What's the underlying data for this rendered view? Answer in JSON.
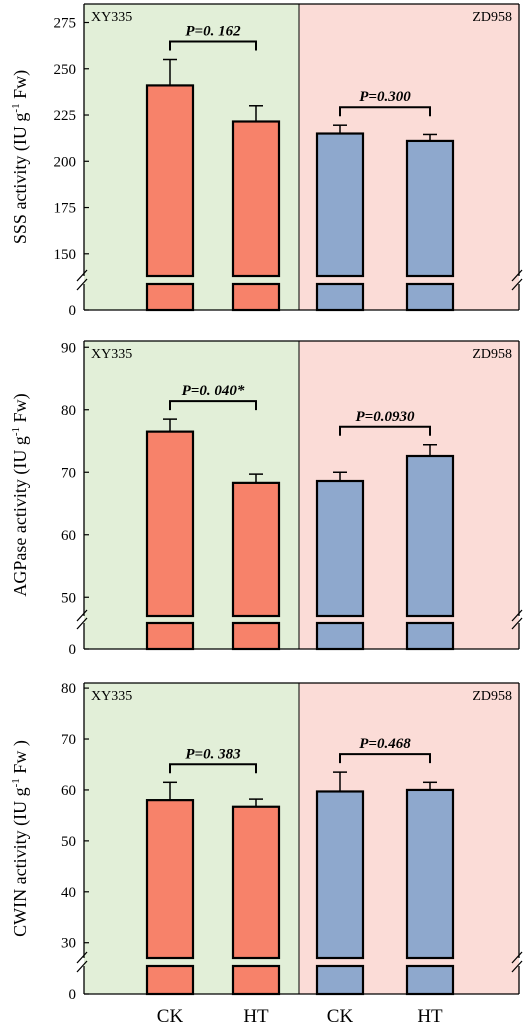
{
  "figure": {
    "x_categories": [
      "CK",
      "HT",
      "CK",
      "HT"
    ],
    "colors": {
      "left_bg": "#e2efd8",
      "right_bg": "#fbdcd7",
      "xy335_bar": "#f7826a",
      "zd958_bar": "#8ea8cd",
      "bar_stroke": "#000000"
    }
  },
  "chart_data": [
    {
      "type": "bar",
      "ylabel_main": "SSS activity (IU g",
      "ylabel_sup": "-1",
      "ylabel_tail": " Fw)",
      "yticks": [
        "275",
        "250",
        "225",
        "200",
        "175",
        "150"
      ],
      "y_bottom_tick": "0",
      "ylim": [
        138,
        285
      ],
      "axis_break": true,
      "groups": [
        {
          "name": "XY335",
          "categories": [
            "CK",
            "HT"
          ],
          "values": [
            241,
            221.5
          ],
          "errors": [
            14,
            8.5
          ],
          "pvalue": "P=0. 162"
        },
        {
          "name": "ZD958",
          "categories": [
            "CK",
            "HT"
          ],
          "values": [
            215,
            211
          ],
          "errors": [
            4.5,
            3.5
          ],
          "pvalue": "P=0.300"
        }
      ]
    },
    {
      "type": "bar",
      "ylabel_main": "AGPase activity (IU g",
      "ylabel_sup": "-1",
      "ylabel_tail": " Fw)",
      "yticks": [
        "90",
        "80",
        "70",
        "60",
        "50"
      ],
      "y_bottom_tick": "0",
      "ylim": [
        47,
        91
      ],
      "axis_break": true,
      "groups": [
        {
          "name": "XY335",
          "categories": [
            "CK",
            "HT"
          ],
          "values": [
            76.5,
            68.3
          ],
          "errors": [
            2,
            1.4
          ],
          "pvalue": "P=0. 040*"
        },
        {
          "name": "ZD958",
          "categories": [
            "CK",
            "HT"
          ],
          "values": [
            68.6,
            72.6
          ],
          "errors": [
            1.4,
            1.8
          ],
          "pvalue": "P=0.0930"
        }
      ]
    },
    {
      "type": "bar",
      "ylabel_main": "CWIN activity (IU g",
      "ylabel_sup": "-1",
      "ylabel_tail": " Fw  )",
      "yticks": [
        "80",
        "70",
        "60",
        "50",
        "40",
        "30"
      ],
      "y_bottom_tick": "0",
      "ylim": [
        27,
        81
      ],
      "axis_break": true,
      "groups": [
        {
          "name": "XY335",
          "categories": [
            "CK",
            "HT"
          ],
          "values": [
            58,
            56.7
          ],
          "errors": [
            3.5,
            1.5
          ],
          "pvalue": "P=0. 383"
        },
        {
          "name": "ZD958",
          "categories": [
            "CK",
            "HT"
          ],
          "values": [
            59.7,
            60
          ],
          "errors": [
            3.8,
            1.5
          ],
          "pvalue": "P=0.468"
        }
      ]
    }
  ]
}
